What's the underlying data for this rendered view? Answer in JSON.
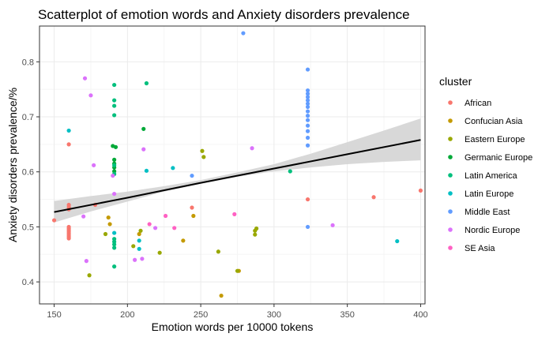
{
  "chart_data": {
    "type": "scatter",
    "title": "Scatterplot of emotion words and Anxiety disorders prevalence",
    "xlabel": "Emotion words per 10000 tokens",
    "ylabel": "Anxiety disorders prevalence/%",
    "xlim": [
      140,
      403
    ],
    "ylim": [
      0.36,
      0.865
    ],
    "xticks": [
      150,
      200,
      250,
      300,
      350,
      400
    ],
    "yticks": [
      0.4,
      0.5,
      0.6,
      0.7,
      0.8
    ],
    "grid": true,
    "legend_position": "right",
    "legend_title": "cluster",
    "series": [
      {
        "name": "African",
        "color": "#F8766D",
        "points": [
          [
            150,
            0.512
          ],
          [
            160,
            0.54
          ],
          [
            160,
            0.536
          ],
          [
            160,
            0.532
          ],
          [
            160,
            0.65
          ],
          [
            160,
            0.5
          ],
          [
            160,
            0.497
          ],
          [
            160,
            0.494
          ],
          [
            160,
            0.491
          ],
          [
            160,
            0.488
          ],
          [
            160,
            0.485
          ],
          [
            160,
            0.482
          ],
          [
            160,
            0.479
          ],
          [
            178,
            0.54
          ],
          [
            244,
            0.535
          ],
          [
            323,
            0.55
          ],
          [
            368,
            0.554
          ],
          [
            400,
            0.566
          ]
        ]
      },
      {
        "name": "Confucian Asia",
        "color": "#C49A00",
        "points": [
          [
            187,
            0.517
          ],
          [
            188,
            0.505
          ],
          [
            208,
            0.487
          ],
          [
            238,
            0.475
          ],
          [
            245,
            0.52
          ],
          [
            264,
            0.375
          ],
          [
            276,
            0.42
          ]
        ]
      },
      {
        "name": "Eastern Europe",
        "color": "#99A800",
        "points": [
          [
            174,
            0.412
          ],
          [
            185,
            0.487
          ],
          [
            204,
            0.465
          ],
          [
            209,
            0.493
          ],
          [
            222,
            0.453
          ],
          [
            251,
            0.638
          ],
          [
            252,
            0.627
          ],
          [
            262,
            0.455
          ],
          [
            275,
            0.42
          ],
          [
            287,
            0.493
          ],
          [
            288,
            0.497
          ],
          [
            287,
            0.486
          ]
        ]
      },
      {
        "name": "Germanic Europe",
        "color": "#00A938",
        "points": [
          [
            190,
            0.647
          ],
          [
            191,
            0.622
          ],
          [
            191,
            0.615
          ],
          [
            191,
            0.608
          ],
          [
            191,
            0.601
          ],
          [
            192,
            0.645
          ],
          [
            211,
            0.678
          ]
        ]
      },
      {
        "name": "Latin America",
        "color": "#00BF7D",
        "points": [
          [
            191,
            0.758
          ],
          [
            191,
            0.73
          ],
          [
            191,
            0.72
          ],
          [
            191,
            0.703
          ],
          [
            191,
            0.612
          ],
          [
            191,
            0.596
          ],
          [
            191,
            0.478
          ],
          [
            191,
            0.473
          ],
          [
            191,
            0.468
          ],
          [
            191,
            0.462
          ],
          [
            191,
            0.428
          ],
          [
            213,
            0.761
          ],
          [
            311,
            0.601
          ]
        ]
      },
      {
        "name": "Latin Europe",
        "color": "#00BFC4",
        "points": [
          [
            160,
            0.675
          ],
          [
            191,
            0.489
          ],
          [
            208,
            0.475
          ],
          [
            208,
            0.46
          ],
          [
            213,
            0.602
          ],
          [
            231,
            0.607
          ],
          [
            384,
            0.474
          ]
        ]
      },
      {
        "name": "Middle East",
        "color": "#619CFF",
        "points": [
          [
            279,
            0.852
          ],
          [
            323,
            0.786
          ],
          [
            323,
            0.748
          ],
          [
            323,
            0.742
          ],
          [
            323,
            0.736
          ],
          [
            323,
            0.73
          ],
          [
            323,
            0.724
          ],
          [
            323,
            0.718
          ],
          [
            323,
            0.71
          ],
          [
            323,
            0.702
          ],
          [
            323,
            0.694
          ],
          [
            323,
            0.684
          ],
          [
            323,
            0.674
          ],
          [
            323,
            0.662
          ],
          [
            323,
            0.648
          ],
          [
            323,
            0.5
          ],
          [
            244,
            0.593
          ]
        ]
      },
      {
        "name": "Nordic Europe",
        "color": "#DB72FB",
        "points": [
          [
            171,
            0.77
          ],
          [
            175,
            0.739
          ],
          [
            170,
            0.519
          ],
          [
            172,
            0.438
          ],
          [
            177,
            0.612
          ],
          [
            190,
            0.593
          ],
          [
            191,
            0.56
          ],
          [
            205,
            0.44
          ],
          [
            210,
            0.442
          ],
          [
            211,
            0.641
          ],
          [
            219,
            0.498
          ],
          [
            285,
            0.643
          ],
          [
            340,
            0.503
          ]
        ]
      },
      {
        "name": "SE Asia",
        "color": "#FF61C3",
        "points": [
          [
            215,
            0.505
          ],
          [
            226,
            0.52
          ],
          [
            232,
            0.498
          ],
          [
            273,
            0.523
          ]
        ]
      }
    ],
    "trend_line": {
      "color": "#000000",
      "points": [
        [
          150,
          0.527
        ],
        [
          200,
          0.553
        ],
        [
          250,
          0.58
        ],
        [
          300,
          0.606
        ],
        [
          350,
          0.632
        ],
        [
          400,
          0.658
        ]
      ],
      "band_color": "#D4D4D4",
      "band_lower": [
        [
          150,
          0.508
        ],
        [
          175,
          0.528
        ],
        [
          200,
          0.546
        ],
        [
          225,
          0.564
        ],
        [
          250,
          0.578
        ],
        [
          275,
          0.591
        ],
        [
          300,
          0.601
        ],
        [
          325,
          0.608
        ],
        [
          350,
          0.614
        ],
        [
          375,
          0.618
        ],
        [
          400,
          0.621
        ]
      ],
      "band_upper": [
        [
          150,
          0.547
        ],
        [
          175,
          0.556
        ],
        [
          200,
          0.564
        ],
        [
          225,
          0.574
        ],
        [
          250,
          0.585
        ],
        [
          275,
          0.599
        ],
        [
          300,
          0.614
        ],
        [
          325,
          0.633
        ],
        [
          350,
          0.654
        ],
        [
          375,
          0.675
        ],
        [
          400,
          0.697
        ]
      ]
    }
  }
}
